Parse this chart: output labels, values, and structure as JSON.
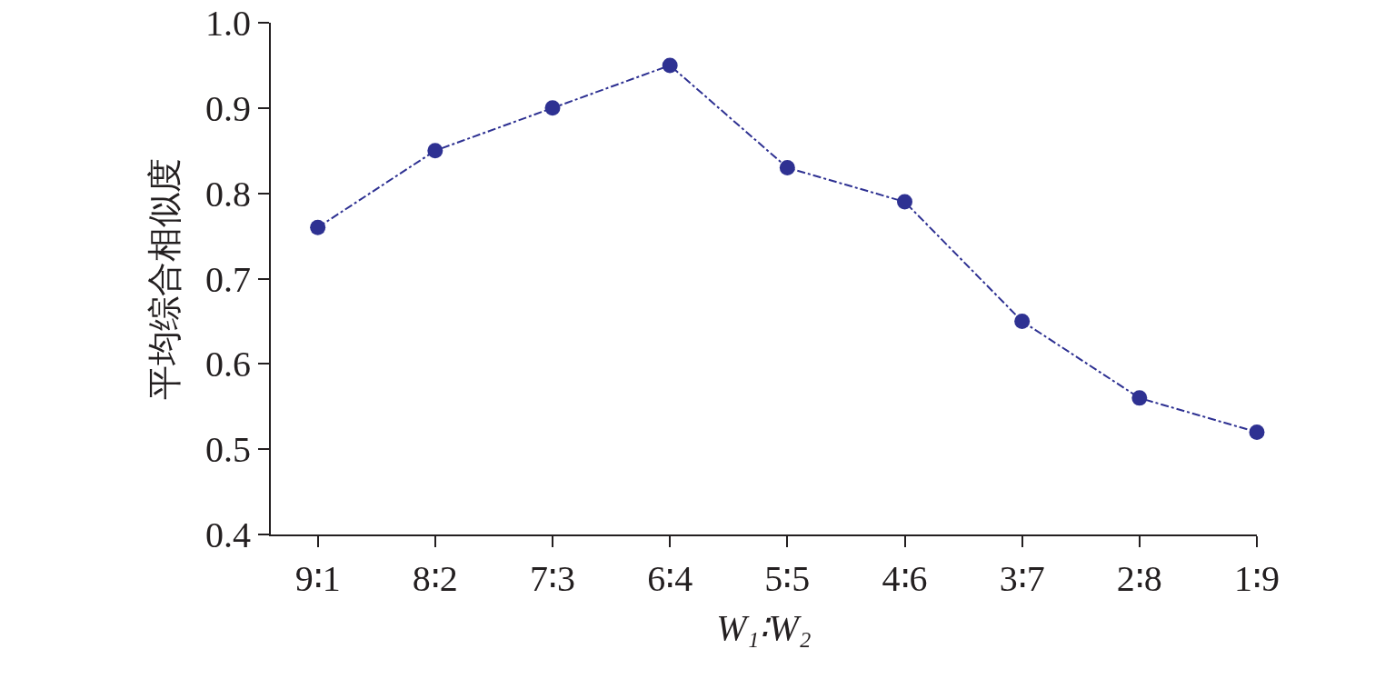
{
  "chart_data": {
    "type": "line",
    "xlabel": "W₁∶W₂",
    "ylabel": "平均综合相似度",
    "categories": [
      "9∶1",
      "8∶2",
      "7∶3",
      "6∶4",
      "5∶5",
      "4∶6",
      "3∶7",
      "2∶8",
      "1∶9"
    ],
    "series": [
      {
        "color": "#2e3192",
        "values": [
          0.76,
          0.85,
          0.9,
          0.95,
          0.83,
          0.79,
          0.65,
          0.56,
          0.52
        ]
      }
    ],
    "ylim": [
      0.4,
      1.0
    ],
    "yticks": [
      {
        "value": 0.4,
        "label": "0.4"
      },
      {
        "value": 0.5,
        "label": "0.5"
      },
      {
        "value": 0.6,
        "label": "0.6"
      },
      {
        "value": 0.7,
        "label": "0.7"
      },
      {
        "value": 0.8,
        "label": "0.8"
      },
      {
        "value": 0.9,
        "label": "0.9"
      },
      {
        "value": 1.0,
        "label": "1.0"
      }
    ],
    "grid": false,
    "marker": "circle",
    "line_style": "dashed"
  }
}
